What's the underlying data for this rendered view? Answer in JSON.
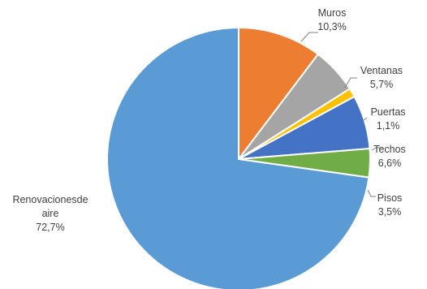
{
  "chart_data": {
    "type": "pie",
    "title": "",
    "start_angle_deg": 0,
    "direction": "clockwise",
    "slices": [
      {
        "label": "Muros",
        "value_label": "10,3%",
        "value": 10.3,
        "color": "#ED7D31"
      },
      {
        "label": "Ventanas",
        "value_label": "5,7%",
        "value": 5.7,
        "color": "#A5A5A5"
      },
      {
        "label": "Puertas",
        "value_label": "1,1%",
        "value": 1.1,
        "color": "#FFC000"
      },
      {
        "label": "Techos",
        "value_label": "6,6%",
        "value": 6.6,
        "color": "#4472C4"
      },
      {
        "label": "Pisos",
        "value_label": "3,5%",
        "value": 3.5,
        "color": "#70AD47"
      },
      {
        "label_lines": [
          "Renovacionesde",
          "aire"
        ],
        "value_label": "72,7%",
        "value": 72.7,
        "color": "#5B9BD5"
      }
    ],
    "legend": "none",
    "data_labels": "category-and-percent"
  }
}
